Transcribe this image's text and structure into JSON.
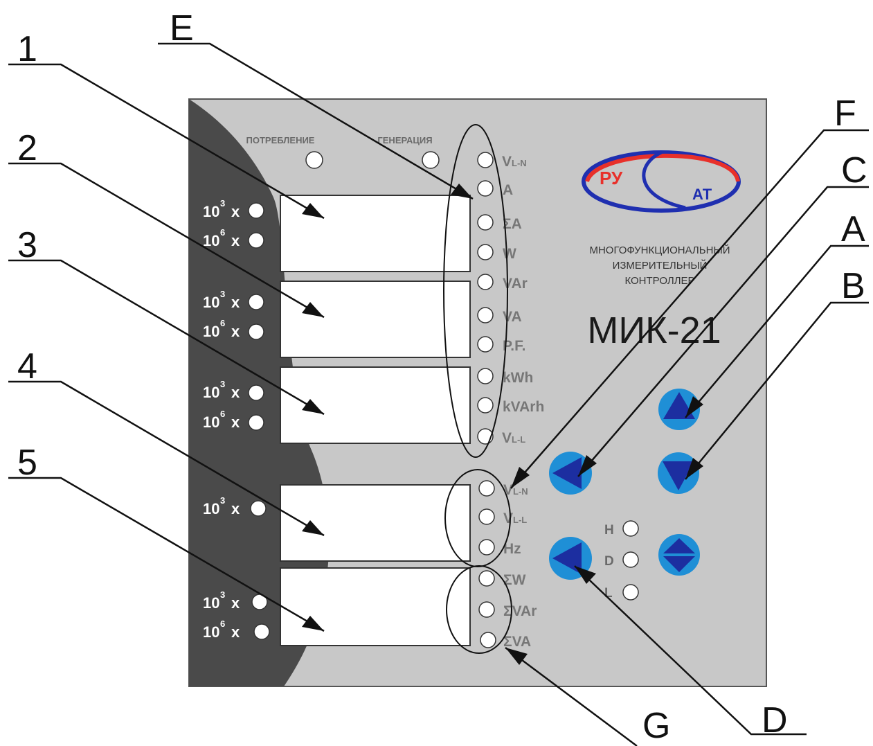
{
  "callouts": {
    "one": "1",
    "two": "2",
    "three": "3",
    "four": "4",
    "five": "5",
    "e": "E",
    "f": "F",
    "c": "C",
    "a": "A",
    "b": "B",
    "g": "G",
    "d": "D"
  },
  "panel": {
    "mode_consumption": "ПОТРЕБЛЕНИЕ",
    "mode_generation": "ГЕНЕРАЦИЯ",
    "description_lines": [
      "МНОГОФУНКЦИОНАЛЬНЫЙ",
      "ИЗМЕРИТЕЛЬНЫЙ",
      "КОНТРОЛЛЕР"
    ],
    "model": "МИК-21",
    "logo": {
      "left": "РУ",
      "right": "АТ"
    },
    "multiplier": {
      "base": "10",
      "exp3": "3",
      "exp6": "6",
      "x": "x"
    },
    "indicators": {
      "vln_main": "V",
      "vln_sub": "L-N",
      "a": "A",
      "sum_a": "ΣA",
      "w": "W",
      "var": "VAr",
      "va": "VA",
      "pf": "P.F.",
      "kwh": "kWh",
      "kvarh": "kVArh",
      "vll_main": "V",
      "vll_sub": "L-L",
      "vln2_main": "V",
      "vln2_sub": "L-N",
      "vll2_main": "V",
      "vll2_sub": "L-L",
      "hz": "Hz",
      "sum_w": "ΣW",
      "sum_var": "ΣVAr",
      "sum_va": "ΣVA"
    },
    "hdl": {
      "h": "H",
      "d": "D",
      "l": "L"
    }
  },
  "colors": {
    "panel_bg": "#c8c8c8",
    "panel_dark": "#4a4a4a",
    "button_outer": "#1f8fd6",
    "button_inner": "#1c2ea0",
    "logo_red": "#e8302a",
    "logo_blue": "#1f2fb0"
  }
}
